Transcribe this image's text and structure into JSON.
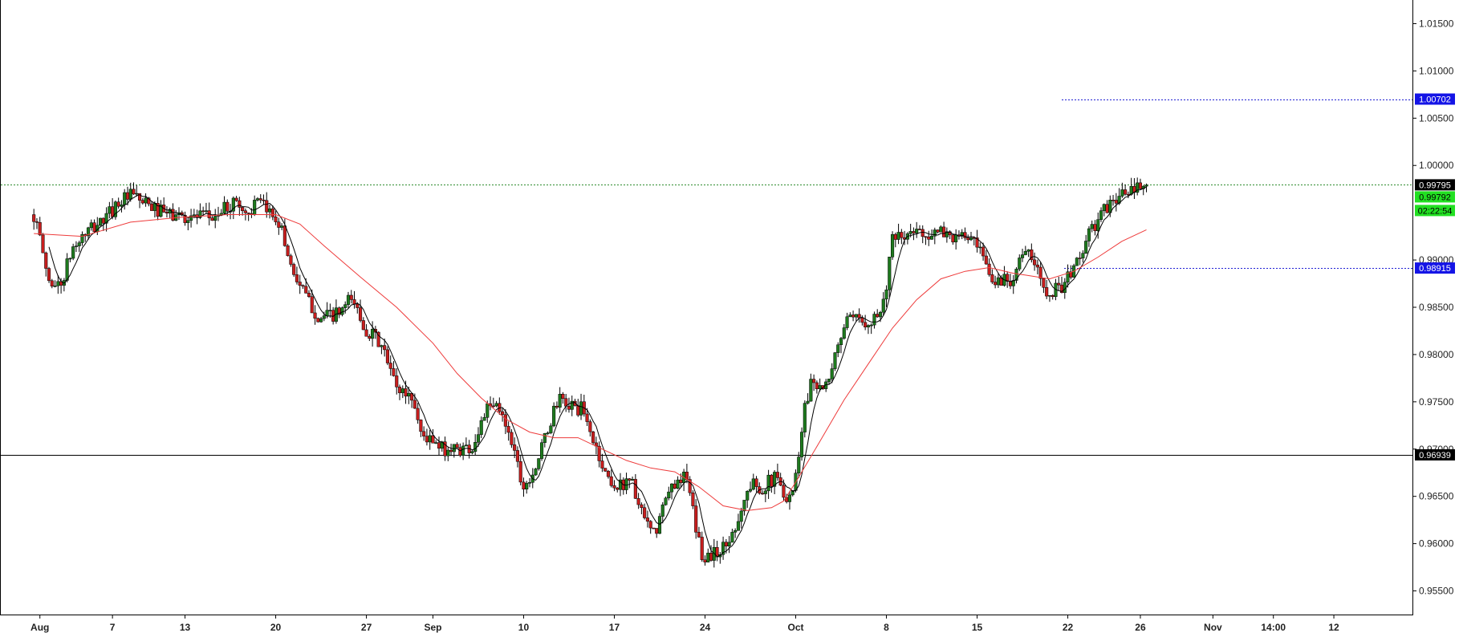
{
  "chart_data": {
    "type": "candlestick",
    "title": "",
    "xlabel": "",
    "ylabel": "",
    "ylim": [
      0.9525,
      1.0175
    ],
    "y_ticks": [
      {
        "value": 1.015,
        "label": "1.01500"
      },
      {
        "value": 1.01,
        "label": "1.01000"
      },
      {
        "value": 1.005,
        "label": "1.00500"
      },
      {
        "value": 1.0,
        "label": "1.00000"
      },
      {
        "value": 0.99,
        "label": "0.99000"
      },
      {
        "value": 0.985,
        "label": "0.98500"
      },
      {
        "value": 0.98,
        "label": "0.98000"
      },
      {
        "value": 0.975,
        "label": "0.97500"
      },
      {
        "value": 0.97,
        "label": "0.97000"
      },
      {
        "value": 0.965,
        "label": "0.96500"
      },
      {
        "value": 0.96,
        "label": "0.96000"
      },
      {
        "value": 0.955,
        "label": "0.95500"
      }
    ],
    "x_ticks": [
      {
        "t": 0.5,
        "label": "Aug"
      },
      {
        "t": 6.5,
        "label": "7"
      },
      {
        "t": 12.5,
        "label": "13"
      },
      {
        "t": 20.0,
        "label": "20"
      },
      {
        "t": 27.5,
        "label": "27"
      },
      {
        "t": 33.0,
        "label": "Sep"
      },
      {
        "t": 40.5,
        "label": "10"
      },
      {
        "t": 48.0,
        "label": "17"
      },
      {
        "t": 55.5,
        "label": "24"
      },
      {
        "t": 63.0,
        "label": "Oct"
      },
      {
        "t": 70.5,
        "label": "8"
      },
      {
        "t": 78.0,
        "label": "15"
      },
      {
        "t": 85.5,
        "label": "22"
      },
      {
        "t": 91.5,
        "label": "26"
      },
      {
        "t": 97.5,
        "label": "Nov"
      },
      {
        "t": 102.5,
        "label": "14:00"
      },
      {
        "t": 107.5,
        "label": "12"
      }
    ],
    "x_range": [
      -2.8,
      114
    ],
    "price_path": [
      [
        0,
        0.9948
      ],
      [
        0.8,
        0.9905
      ],
      [
        1.2,
        0.9878
      ],
      [
        2.2,
        0.9872
      ],
      [
        3.2,
        0.9912
      ],
      [
        4.3,
        0.9928
      ],
      [
        6.0,
        0.9945
      ],
      [
        7.0,
        0.9962
      ],
      [
        8.2,
        0.9968
      ],
      [
        9.3,
        0.9958
      ],
      [
        11.0,
        0.9948
      ],
      [
        12.5,
        0.9946
      ],
      [
        14.8,
        0.9945
      ],
      [
        16.8,
        0.9963
      ],
      [
        17.5,
        0.9948
      ],
      [
        18.5,
        0.996
      ],
      [
        20.2,
        0.9944
      ],
      [
        21.3,
        0.9893
      ],
      [
        22.3,
        0.9865
      ],
      [
        23.6,
        0.9838
      ],
      [
        25.3,
        0.9843
      ],
      [
        26.3,
        0.986
      ],
      [
        27.3,
        0.983
      ],
      [
        28.7,
        0.981
      ],
      [
        30.0,
        0.9765
      ],
      [
        31.3,
        0.9755
      ],
      [
        32.0,
        0.9718
      ],
      [
        33.5,
        0.97
      ],
      [
        34.8,
        0.97
      ],
      [
        36.3,
        0.9702
      ],
      [
        37.3,
        0.974
      ],
      [
        38.3,
        0.9745
      ],
      [
        39.3,
        0.972
      ],
      [
        40.5,
        0.966
      ],
      [
        41.6,
        0.9685
      ],
      [
        42.3,
        0.9712
      ],
      [
        43.3,
        0.9752
      ],
      [
        44.3,
        0.9746
      ],
      [
        45.3,
        0.9742
      ],
      [
        46.3,
        0.9708
      ],
      [
        47.2,
        0.9675
      ],
      [
        48.3,
        0.9658
      ],
      [
        49.3,
        0.9672
      ],
      [
        50.3,
        0.9628
      ],
      [
        51.3,
        0.9608
      ],
      [
        52.3,
        0.9648
      ],
      [
        53.3,
        0.9672
      ],
      [
        54.0,
        0.9668
      ],
      [
        54.6,
        0.9625
      ],
      [
        55.3,
        0.9585
      ],
      [
        56.3,
        0.959
      ],
      [
        57.3,
        0.9598
      ],
      [
        58.3,
        0.963
      ],
      [
        59.3,
        0.9663
      ],
      [
        60.3,
        0.966
      ],
      [
        61.3,
        0.967
      ],
      [
        62.3,
        0.965
      ],
      [
        62.9,
        0.966
      ],
      [
        63.6,
        0.9735
      ],
      [
        64.3,
        0.9775
      ],
      [
        65.3,
        0.9765
      ],
      [
        65.8,
        0.9768
      ],
      [
        66.5,
        0.9813
      ],
      [
        67.2,
        0.9835
      ],
      [
        68.3,
        0.9835
      ],
      [
        69.3,
        0.9838
      ],
      [
        70.2,
        0.985
      ],
      [
        71.0,
        0.992
      ],
      [
        72.3,
        0.9925
      ],
      [
        73.3,
        0.9932
      ],
      [
        74.3,
        0.9925
      ],
      [
        75.3,
        0.993
      ],
      [
        76.3,
        0.9922
      ],
      [
        77.3,
        0.9925
      ],
      [
        78.3,
        0.9905
      ],
      [
        79.3,
        0.9875
      ],
      [
        80.0,
        0.988
      ],
      [
        80.8,
        0.988
      ],
      [
        81.6,
        0.9905
      ],
      [
        82.3,
        0.9905
      ],
      [
        83.0,
        0.9888
      ],
      [
        83.6,
        0.987
      ],
      [
        84.3,
        0.9868
      ],
      [
        85.3,
        0.9875
      ],
      [
        86.3,
        0.99
      ],
      [
        87.3,
        0.9928
      ],
      [
        88.3,
        0.9948
      ],
      [
        89.3,
        0.9965
      ],
      [
        90.3,
        0.997
      ],
      [
        91.3,
        0.9975
      ],
      [
        92.0,
        0.9979
      ]
    ],
    "series": [
      {
        "name": "",
        "color": "#000000",
        "type": "short-ma"
      },
      {
        "name": "",
        "color": "#ee3b3b",
        "type": "long-ma"
      }
    ],
    "long_ma_path": [
      [
        0,
        0.9928
      ],
      [
        4,
        0.9925
      ],
      [
        8,
        0.994
      ],
      [
        12,
        0.9945
      ],
      [
        16,
        0.9948
      ],
      [
        20,
        0.9948
      ],
      [
        22,
        0.9938
      ],
      [
        24,
        0.9915
      ],
      [
        27,
        0.9882
      ],
      [
        30,
        0.985
      ],
      [
        33,
        0.9812
      ],
      [
        35,
        0.978
      ],
      [
        37,
        0.9754
      ],
      [
        39,
        0.9732
      ],
      [
        41,
        0.9718
      ],
      [
        43,
        0.9712
      ],
      [
        45,
        0.9712
      ],
      [
        47,
        0.97
      ],
      [
        49,
        0.9688
      ],
      [
        51,
        0.968
      ],
      [
        53,
        0.9676
      ],
      [
        55,
        0.966
      ],
      [
        57,
        0.964
      ],
      [
        59,
        0.9635
      ],
      [
        61,
        0.9638
      ],
      [
        62,
        0.9645
      ],
      [
        63,
        0.9665
      ],
      [
        65,
        0.9708
      ],
      [
        67,
        0.9752
      ],
      [
        69,
        0.979
      ],
      [
        71,
        0.9828
      ],
      [
        73,
        0.9858
      ],
      [
        75,
        0.988
      ],
      [
        77,
        0.9888
      ],
      [
        79,
        0.9892
      ],
      [
        81,
        0.9886
      ],
      [
        82,
        0.9884
      ],
      [
        84,
        0.988
      ],
      [
        86,
        0.9888
      ],
      [
        88,
        0.9903
      ],
      [
        90,
        0.992
      ],
      [
        92,
        0.9932
      ]
    ],
    "horizontal_lines": [
      {
        "value": 1.00702,
        "label": "1.00702",
        "color": "#1f1fd4",
        "style": "dotted",
        "from_t": 85.0
      },
      {
        "value": 0.99795,
        "label": "0.99795",
        "color": "#2e8b2e",
        "style": "dotted",
        "from_t": -3
      },
      {
        "value": 0.98915,
        "label": "0.98915",
        "color": "#1f1fd4",
        "style": "dotted",
        "from_t": 85.2
      },
      {
        "value": 0.96939,
        "label": "0.96939",
        "color": "#000000",
        "style": "solid",
        "from_t": -3
      }
    ],
    "price_badges": [
      {
        "value": 1.00702,
        "label": "1.00702",
        "bg": "#1414e6",
        "fg": "#ffffff"
      },
      {
        "value": 0.99795,
        "label": "0.99795",
        "bg": "#000000",
        "fg": "#ffffff"
      },
      {
        "value": 0.99792,
        "label": "0.99792",
        "bg": "#22e022",
        "fg": "#000000"
      },
      {
        "value": 0.98915,
        "label": "0.98915",
        "bg": "#1414e6",
        "fg": "#ffffff"
      },
      {
        "value": 0.96939,
        "label": "0.96939",
        "bg": "#000000",
        "fg": "#ffffff"
      }
    ],
    "countdown": {
      "label": "02:22:54",
      "bg": "#22e022",
      "fg": "#000000"
    },
    "colors": {
      "bull": "#1e7a1e",
      "bear": "#c81e1e",
      "axis": "#000000"
    },
    "grid": false
  }
}
